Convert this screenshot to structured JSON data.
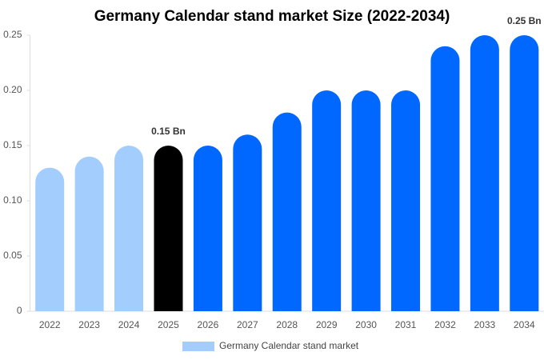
{
  "chart_data": {
    "type": "bar",
    "title": "Germany Calendar stand market  Size (2022-2034)",
    "categories": [
      "2022",
      "2023",
      "2024",
      "2025",
      "2026",
      "2027",
      "2028",
      "2029",
      "2030",
      "2031",
      "2032",
      "2033",
      "2034"
    ],
    "series": [
      {
        "name": "Germany Calendar stand market",
        "color": "#a3cdfd",
        "colors": [
          "#a3cdfd",
          "#a3cdfd",
          "#a3cdfd",
          "#000000",
          "#0068ff",
          "#0068ff",
          "#0068ff",
          "#0068ff",
          "#0068ff",
          "#0068ff",
          "#0068ff",
          "#0068ff",
          "#0068ff"
        ],
        "values": [
          0.13,
          0.14,
          0.15,
          0.15,
          0.15,
          0.16,
          0.18,
          0.2,
          0.2,
          0.2,
          0.24,
          0.25,
          0.25
        ],
        "value_labels": [
          null,
          null,
          null,
          "0.15 Bn",
          null,
          null,
          null,
          null,
          null,
          null,
          null,
          null,
          "0.25 Bn"
        ]
      }
    ],
    "ylim": [
      0,
      0.25
    ],
    "yticks": [
      0,
      0.05,
      {
        "value": 0.1,
        "label": "0.10"
      },
      0.15,
      {
        "value": 0.2,
        "label": "0.20"
      },
      0.25
    ]
  }
}
